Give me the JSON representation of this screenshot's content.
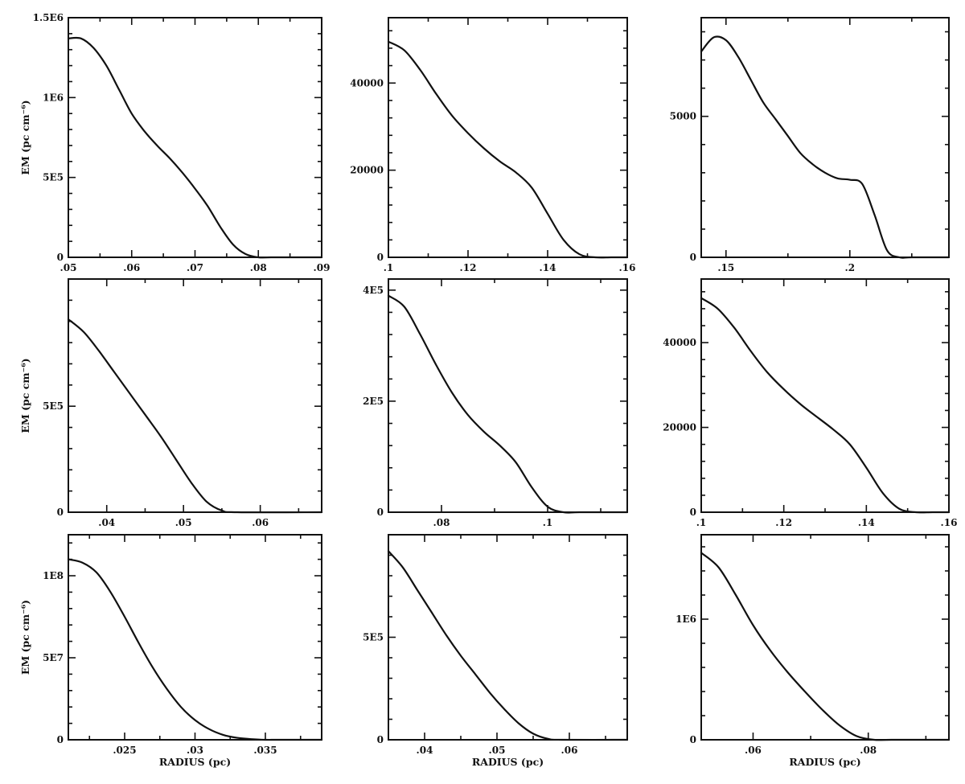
{
  "chart_data": [
    {
      "type": "line",
      "xlabel": "",
      "ylabel": "EM (pc cm⁻⁶)",
      "xlim": [
        0.05,
        0.09
      ],
      "ylim": [
        0,
        1500000
      ],
      "xticks": [
        0.05,
        0.06,
        0.07,
        0.08,
        0.09
      ],
      "xtick_labels": [
        ".05",
        ".06",
        ".07",
        ".08",
        ".09"
      ],
      "yticks": [
        0,
        500000,
        1000000,
        1500000
      ],
      "ytick_labels": [
        "0",
        "5E5",
        "1E6",
        "1.5E6"
      ],
      "x": [
        0.05,
        0.052,
        0.054,
        0.056,
        0.058,
        0.06,
        0.062,
        0.064,
        0.066,
        0.068,
        0.07,
        0.072,
        0.074,
        0.076,
        0.078,
        0.08,
        0.082,
        0.09
      ],
      "y": [
        1370000,
        1370000,
        1310000,
        1200000,
        1050000,
        900000,
        790000,
        700000,
        620000,
        530000,
        430000,
        320000,
        190000,
        80000,
        20000,
        0,
        0,
        0
      ]
    },
    {
      "type": "line",
      "xlabel": "",
      "ylabel": "",
      "xlim": [
        0.1,
        0.16
      ],
      "ylim": [
        0,
        55000
      ],
      "xticks": [
        0.1,
        0.12,
        0.14,
        0.16
      ],
      "xtick_labels": [
        ".1",
        ".12",
        ".14",
        ".16"
      ],
      "yticks": [
        0,
        20000,
        40000
      ],
      "ytick_labels": [
        "0",
        "20000",
        "40000"
      ],
      "x": [
        0.1,
        0.104,
        0.108,
        0.112,
        0.116,
        0.12,
        0.124,
        0.128,
        0.132,
        0.136,
        0.14,
        0.144,
        0.148,
        0.152,
        0.156,
        0.16
      ],
      "y": [
        49500,
        47500,
        43000,
        37500,
        32500,
        28500,
        25000,
        22000,
        19500,
        16000,
        10000,
        4000,
        700,
        0,
        0,
        0
      ]
    },
    {
      "type": "line",
      "xlabel": "",
      "ylabel": "",
      "xlim": [
        0.14,
        0.24
      ],
      "ylim": [
        0,
        8500
      ],
      "xticks": [
        0.15,
        0.2
      ],
      "xtick_labels": [
        ".15",
        ".2"
      ],
      "yticks": [
        0,
        5000
      ],
      "ytick_labels": [
        "0",
        "5000"
      ],
      "x": [
        0.14,
        0.145,
        0.15,
        0.155,
        0.16,
        0.165,
        0.17,
        0.175,
        0.18,
        0.185,
        0.19,
        0.195,
        0.2,
        0.205,
        0.21,
        0.215,
        0.22,
        0.225,
        0.24
      ],
      "y": [
        7300,
        7800,
        7700,
        7100,
        6300,
        5500,
        4900,
        4300,
        3700,
        3300,
        3000,
        2800,
        2750,
        2600,
        1500,
        250,
        0,
        0,
        0
      ]
    },
    {
      "type": "line",
      "xlabel": "",
      "ylabel": "EM (pc cm⁻⁶)",
      "xlim": [
        0.035,
        0.068
      ],
      "ylim": [
        0,
        1100000
      ],
      "xticks": [
        0.04,
        0.05,
        0.06
      ],
      "xtick_labels": [
        ".04",
        ".05",
        ".06"
      ],
      "yticks": [
        0,
        500000
      ],
      "ytick_labels": [
        "0",
        "5E5"
      ],
      "x": [
        0.035,
        0.037,
        0.039,
        0.041,
        0.043,
        0.045,
        0.047,
        0.049,
        0.051,
        0.053,
        0.055,
        0.057,
        0.068
      ],
      "y": [
        910000,
        850000,
        760000,
        660000,
        560000,
        460000,
        360000,
        250000,
        140000,
        50000,
        8000,
        0,
        0
      ]
    },
    {
      "type": "line",
      "xlabel": "",
      "ylabel": "",
      "xlim": [
        0.07,
        0.115
      ],
      "ylim": [
        0,
        420000
      ],
      "xticks": [
        0.08,
        0.1
      ],
      "xtick_labels": [
        ".08",
        ".1"
      ],
      "yticks": [
        0,
        200000,
        400000
      ],
      "ytick_labels": [
        "0",
        "2E5",
        "4E5"
      ],
      "x": [
        0.07,
        0.073,
        0.076,
        0.079,
        0.082,
        0.085,
        0.088,
        0.091,
        0.094,
        0.097,
        0.1,
        0.103,
        0.106,
        0.115
      ],
      "y": [
        390000,
        370000,
        320000,
        265000,
        215000,
        175000,
        145000,
        120000,
        90000,
        45000,
        10000,
        0,
        0,
        0
      ]
    },
    {
      "type": "line",
      "xlabel": "",
      "ylabel": "",
      "xlim": [
        0.1,
        0.16
      ],
      "ylim": [
        0,
        55000
      ],
      "xticks": [
        0.1,
        0.12,
        0.14,
        0.16
      ],
      "xtick_labels": [
        ".1",
        ".12",
        ".14",
        ".16"
      ],
      "yticks": [
        0,
        20000,
        40000
      ],
      "ytick_labels": [
        "0",
        "20000",
        "40000"
      ],
      "x": [
        0.1,
        0.104,
        0.108,
        0.112,
        0.116,
        0.12,
        0.124,
        0.128,
        0.132,
        0.136,
        0.14,
        0.144,
        0.148,
        0.152,
        0.156,
        0.16
      ],
      "y": [
        50500,
        48000,
        43500,
        38000,
        33000,
        29000,
        25500,
        22500,
        19500,
        16000,
        10500,
        4500,
        800,
        0,
        0,
        0
      ]
    },
    {
      "type": "line",
      "xlabel": "RADIUS (pc)",
      "ylabel": "EM (pc cm⁻⁶)",
      "xlim": [
        0.021,
        0.039
      ],
      "ylim": [
        0,
        125000000
      ],
      "xticks": [
        0.025,
        0.03,
        0.035
      ],
      "xtick_labels": [
        ".025",
        ".03",
        ".035"
      ],
      "yticks": [
        0,
        50000000,
        100000000
      ],
      "ytick_labels": [
        "0",
        "5E7",
        "1E8"
      ],
      "x": [
        0.021,
        0.022,
        0.023,
        0.024,
        0.025,
        0.026,
        0.027,
        0.028,
        0.029,
        0.03,
        0.031,
        0.032,
        0.033,
        0.034,
        0.035,
        0.036,
        0.039
      ],
      "y": [
        110000000,
        108000000,
        102000000,
        90000000,
        75000000,
        59000000,
        44000000,
        31000000,
        20000000,
        12000000,
        6500000,
        3000000,
        1200000,
        400000,
        0,
        0,
        0
      ]
    },
    {
      "type": "line",
      "xlabel": "RADIUS (pc)",
      "ylabel": "",
      "xlim": [
        0.035,
        0.068
      ],
      "ylim": [
        0,
        1000000
      ],
      "xticks": [
        0.04,
        0.05,
        0.06
      ],
      "xtick_labels": [
        ".04",
        ".05",
        ".06"
      ],
      "yticks": [
        0,
        500000
      ],
      "ytick_labels": [
        "0",
        "5E5"
      ],
      "x": [
        0.035,
        0.037,
        0.039,
        0.041,
        0.043,
        0.045,
        0.047,
        0.049,
        0.051,
        0.053,
        0.055,
        0.057,
        0.059,
        0.068
      ],
      "y": [
        920000,
        840000,
        730000,
        620000,
        510000,
        410000,
        320000,
        230000,
        150000,
        80000,
        30000,
        5000,
        0,
        0
      ]
    },
    {
      "type": "line",
      "xlabel": "RADIUS (pc)",
      "ylabel": "",
      "xlim": [
        0.051,
        0.094
      ],
      "ylim": [
        0,
        1700000
      ],
      "xticks": [
        0.06,
        0.08
      ],
      "xtick_labels": [
        ".06",
        ".08"
      ],
      "yticks": [
        0,
        1000000
      ],
      "ytick_labels": [
        "0",
        "1E6"
      ],
      "x": [
        0.051,
        0.054,
        0.057,
        0.06,
        0.063,
        0.066,
        0.069,
        0.072,
        0.075,
        0.078,
        0.081,
        0.084,
        0.094
      ],
      "y": [
        1550000,
        1430000,
        1200000,
        950000,
        740000,
        560000,
        400000,
        250000,
        120000,
        30000,
        0,
        0,
        0
      ]
    }
  ]
}
